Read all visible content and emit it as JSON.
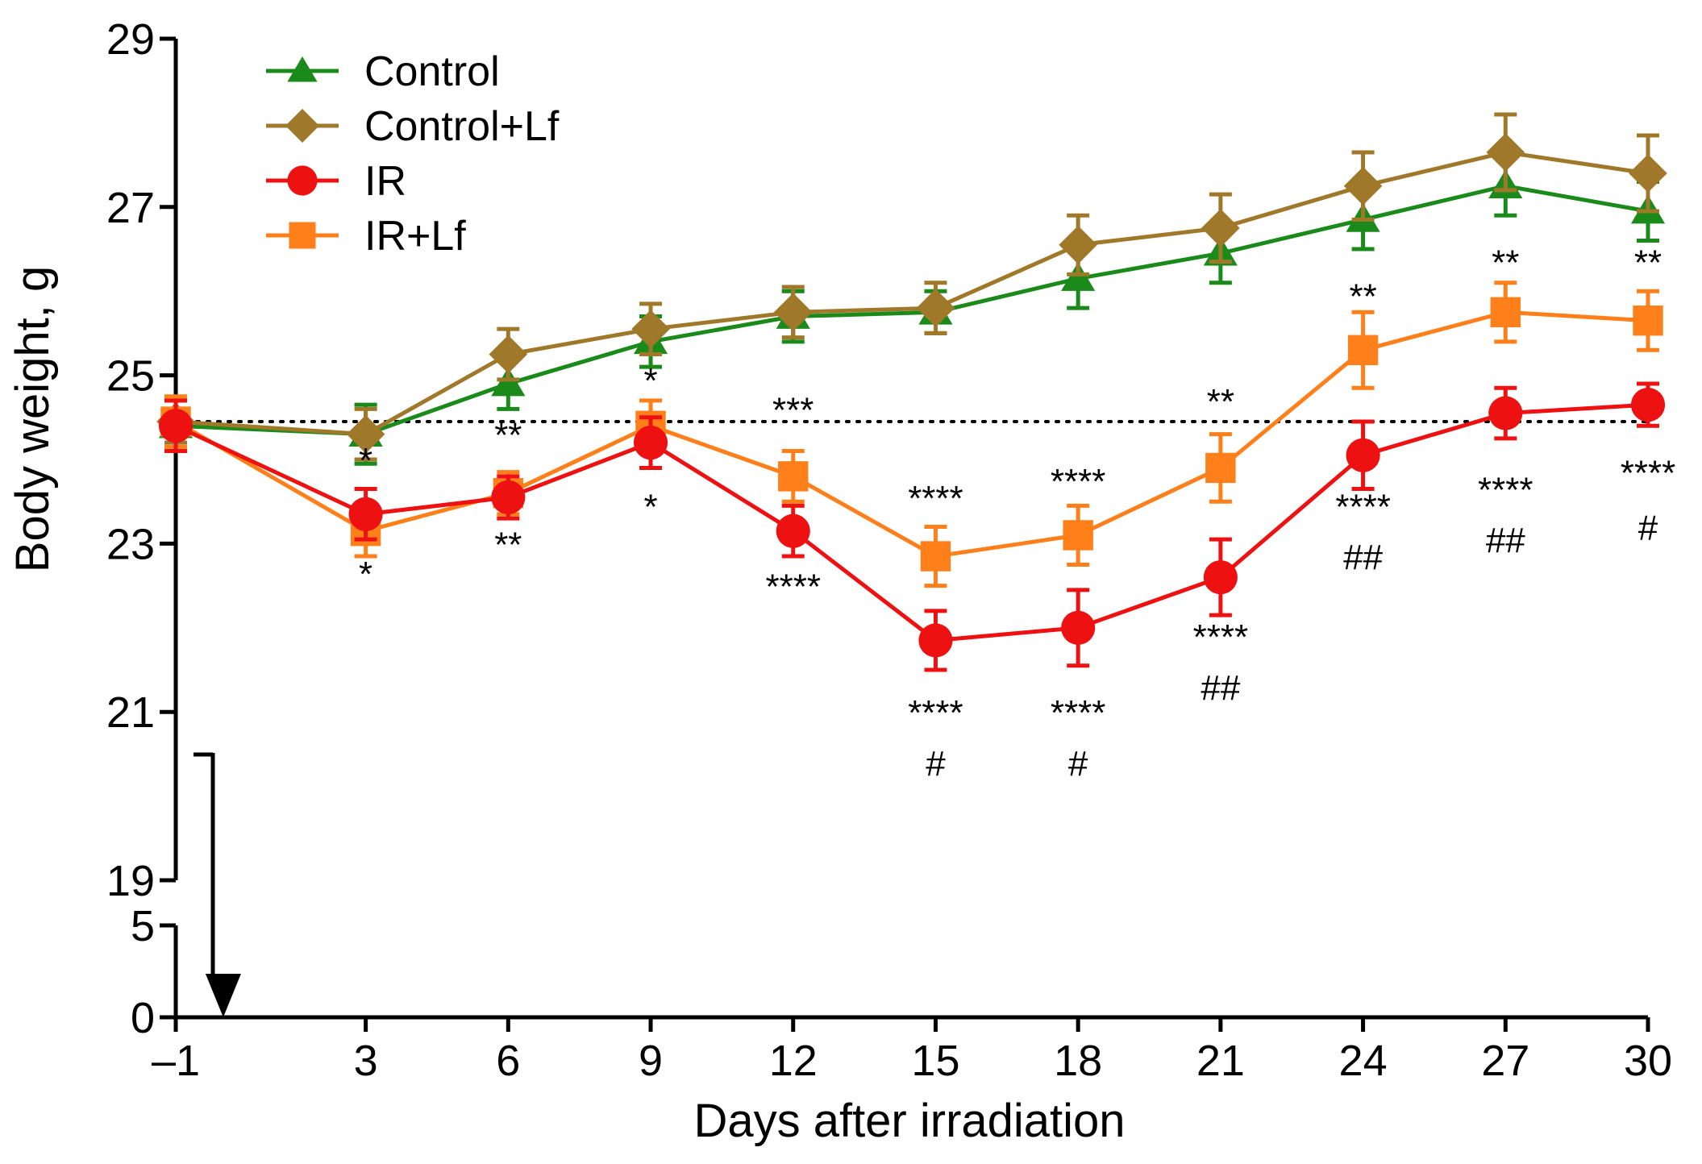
{
  "chart_data": {
    "type": "line",
    "xlabel": "Days after irradiation",
    "ylabel": "Body weight, g",
    "x": [
      -1,
      3,
      6,
      9,
      12,
      15,
      18,
      21,
      24,
      27,
      30
    ],
    "x_tick_labels": [
      "–1",
      "3",
      "6",
      "9",
      "12",
      "15",
      "18",
      "21",
      "24",
      "27",
      "30"
    ],
    "y_ticks_upper": [
      "19",
      "21",
      "23",
      "25",
      "27",
      "29"
    ],
    "y_ticks_lower": [
      "0",
      "5"
    ],
    "ylim_upper": [
      19,
      29
    ],
    "ylim_lower": [
      0,
      5
    ],
    "axis_break": true,
    "baseline": 24.45,
    "irradiation_day": 0,
    "legend_position": "top-left",
    "series": [
      {
        "name": "Control",
        "color": "#1a8a1a",
        "marker": "triangle",
        "values": [
          24.4,
          24.3,
          24.9,
          25.4,
          25.7,
          25.75,
          26.15,
          26.45,
          26.85,
          27.25,
          26.95
        ],
        "errors": [
          0.3,
          0.35,
          0.3,
          0.3,
          0.3,
          0.25,
          0.35,
          0.35,
          0.35,
          0.35,
          0.35
        ]
      },
      {
        "name": "Control+Lf",
        "color": "#a0782a",
        "marker": "diamond",
        "values": [
          24.45,
          24.3,
          25.25,
          25.55,
          25.75,
          25.8,
          26.55,
          26.75,
          27.25,
          27.65,
          27.4
        ],
        "errors": [
          0.25,
          0.3,
          0.3,
          0.3,
          0.3,
          0.3,
          0.35,
          0.4,
          0.4,
          0.45,
          0.45
        ]
      },
      {
        "name": "IR",
        "color": "#ee1111",
        "marker": "circle",
        "values": [
          24.4,
          23.35,
          23.55,
          24.2,
          23.15,
          21.85,
          22.0,
          22.6,
          24.05,
          24.55,
          24.65
        ],
        "errors": [
          0.3,
          0.3,
          0.25,
          0.3,
          0.3,
          0.35,
          0.45,
          0.45,
          0.4,
          0.3,
          0.25
        ]
      },
      {
        "name": "IR+Lf",
        "color": "#ff7f1a",
        "marker": "square",
        "values": [
          24.45,
          23.15,
          23.6,
          24.4,
          23.8,
          22.85,
          23.1,
          23.9,
          25.3,
          25.75,
          25.65
        ],
        "errors": [
          0.3,
          0.3,
          0.25,
          0.3,
          0.3,
          0.35,
          0.35,
          0.4,
          0.45,
          0.35,
          0.35
        ]
      }
    ],
    "annotations": [
      {
        "x": 3,
        "y": 24.0,
        "text": "*"
      },
      {
        "x": 3,
        "y": 22.65,
        "text": "*"
      },
      {
        "x": 6,
        "y": 24.3,
        "text": "**"
      },
      {
        "x": 6,
        "y": 23.0,
        "text": "**"
      },
      {
        "x": 9,
        "y": 24.95,
        "text": "*"
      },
      {
        "x": 9,
        "y": 23.45,
        "text": "*"
      },
      {
        "x": 12,
        "y": 24.6,
        "text": "***"
      },
      {
        "x": 12,
        "y": 22.5,
        "text": "****"
      },
      {
        "x": 15,
        "y": 23.55,
        "text": "****"
      },
      {
        "x": 15,
        "y": 21.0,
        "text": "****"
      },
      {
        "x": 15,
        "y": 20.4,
        "text": "#"
      },
      {
        "x": 18,
        "y": 23.75,
        "text": "****"
      },
      {
        "x": 18,
        "y": 21.0,
        "text": "****"
      },
      {
        "x": 18,
        "y": 20.4,
        "text": "#"
      },
      {
        "x": 21,
        "y": 24.7,
        "text": "**"
      },
      {
        "x": 21,
        "y": 21.9,
        "text": "****"
      },
      {
        "x": 21,
        "y": 21.3,
        "text": "##"
      },
      {
        "x": 24,
        "y": 25.95,
        "text": "**"
      },
      {
        "x": 24,
        "y": 23.45,
        "text": "****"
      },
      {
        "x": 24,
        "y": 22.85,
        "text": "##"
      },
      {
        "x": 27,
        "y": 26.35,
        "text": "**"
      },
      {
        "x": 27,
        "y": 23.65,
        "text": "****"
      },
      {
        "x": 27,
        "y": 23.05,
        "text": "##"
      },
      {
        "x": 30,
        "y": 26.35,
        "text": "**"
      },
      {
        "x": 30,
        "y": 23.85,
        "text": "****"
      },
      {
        "x": 30,
        "y": 23.2,
        "text": "#"
      }
    ]
  }
}
